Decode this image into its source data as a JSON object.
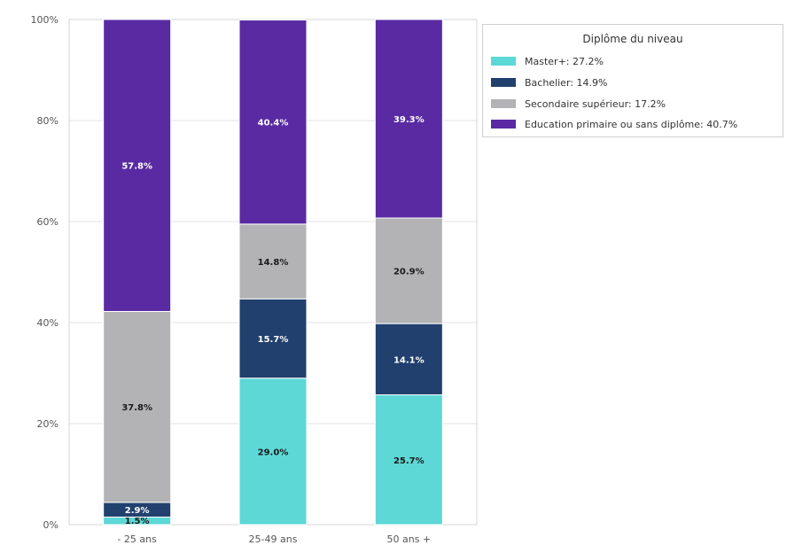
{
  "chart_data": {
    "type": "bar",
    "stacked": true,
    "categories": [
      "- 25 ans",
      "25-49 ans",
      "50 ans +"
    ],
    "series": [
      {
        "name": "Master+: 27.2%",
        "color": "#5dd8d6",
        "values": [
          1.5,
          29.0,
          25.7
        ]
      },
      {
        "name": "Bachelier: 14.9%",
        "color": "#21406e",
        "values": [
          2.9,
          15.7,
          14.1
        ]
      },
      {
        "name": "Secondaire supérieur: 17.2%",
        "color": "#b3b3b5",
        "values": [
          37.8,
          14.8,
          20.9
        ]
      },
      {
        "name": "Education primaire ou sans diplôme: 40.7%",
        "color": "#5a2aa3",
        "values": [
          57.8,
          40.4,
          39.3
        ]
      }
    ],
    "data_labels": [
      [
        "1.5%",
        "2.9%",
        "37.8%",
        "57.8%"
      ],
      [
        "29.0%",
        "15.7%",
        "14.8%",
        "40.4%"
      ],
      [
        "25.7%",
        "14.1%",
        "20.9%",
        "39.3%"
      ]
    ],
    "yticks": [
      0,
      20,
      40,
      60,
      80,
      100
    ],
    "ytick_labels": [
      "0%",
      "20%",
      "40%",
      "60%",
      "80%",
      "100%"
    ],
    "ylim": [
      0,
      100
    ],
    "grid": true,
    "legend": {
      "title": "Diplôme du niveau",
      "position": "right-top"
    }
  }
}
